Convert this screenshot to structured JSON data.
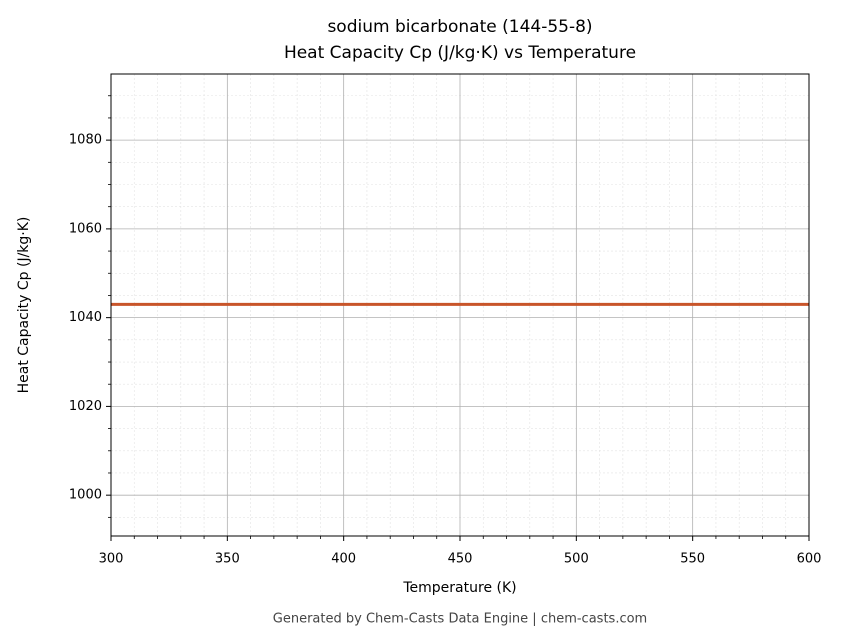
{
  "chart_data": {
    "type": "line",
    "title": "sodium bicarbonate (144-55-8)",
    "subtitle": "Heat Capacity Cp (J/kg·K) vs Temperature",
    "x_label": "Temperature (K)",
    "y_label": "Heat Capacity Cp (J/kg·K)",
    "footer": "Generated by Chem-Casts Data Engine | chem-casts.com",
    "x": [
      300,
      600
    ],
    "series": [
      {
        "name": "Heat Capacity Cp",
        "color": "#c8552a",
        "values": [
          1043,
          1043
        ]
      }
    ],
    "xlim": [
      300,
      600
    ],
    "ylim": [
      990.8,
      1094.9
    ],
    "xticks": [
      300,
      350,
      400,
      450,
      500,
      550,
      600
    ],
    "yticks": [
      1000,
      1020,
      1040,
      1060,
      1080
    ],
    "xminorticks": [
      310,
      320,
      330,
      340,
      360,
      370,
      380,
      390,
      410,
      420,
      430,
      440,
      460,
      470,
      480,
      490,
      510,
      520,
      530,
      540,
      560,
      570,
      580,
      590
    ],
    "yminorticks": [
      995,
      1005,
      1010,
      1015,
      1025,
      1030,
      1035,
      1045,
      1050,
      1055,
      1065,
      1070,
      1075,
      1085,
      1090
    ],
    "grid": true
  }
}
